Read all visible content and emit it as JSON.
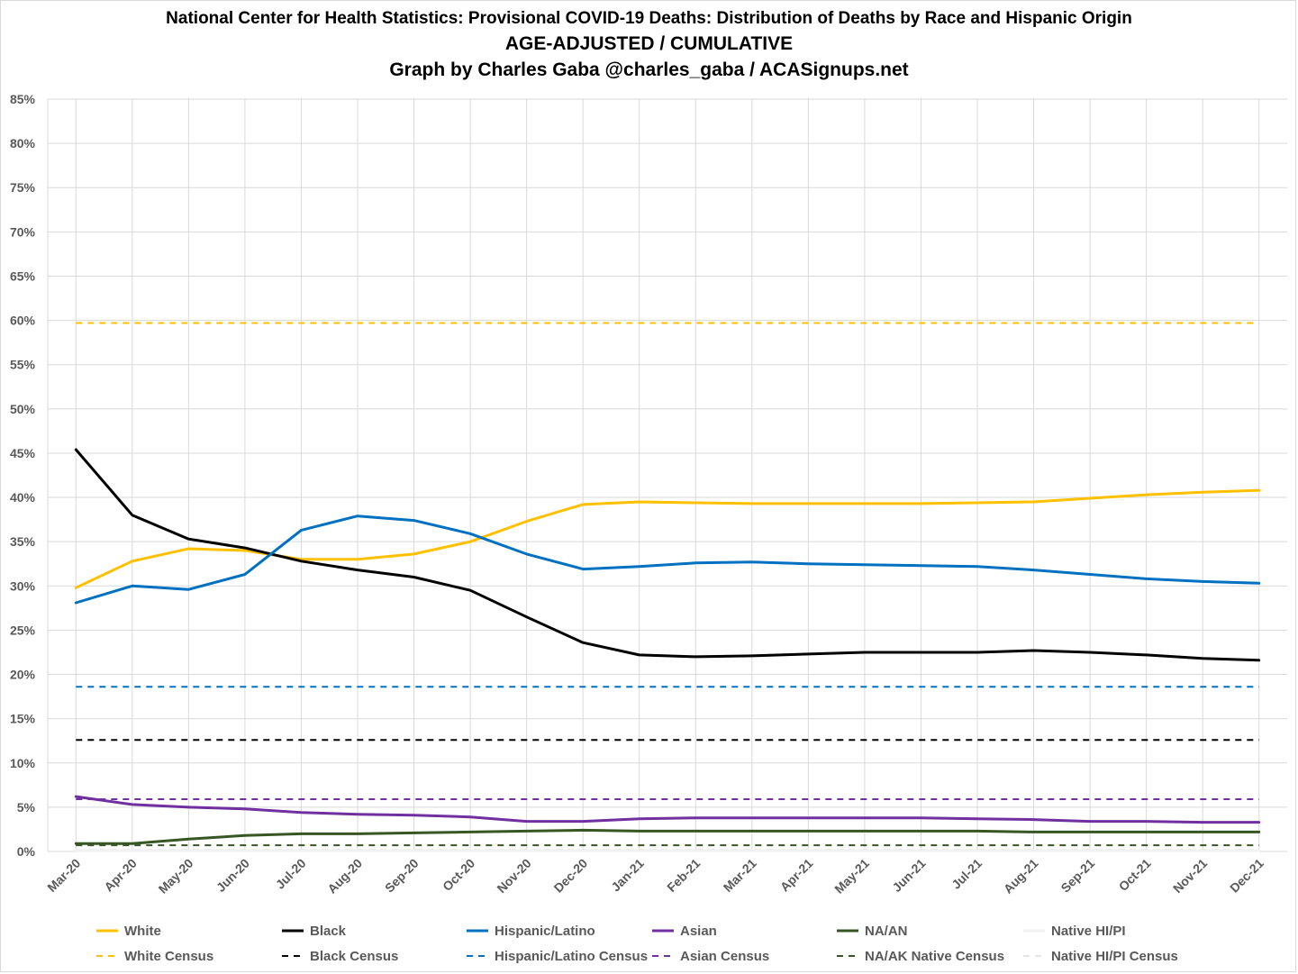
{
  "title": {
    "line1": "National Center for Health Statistics: Provisional COVID-19 Deaths: Distribution of Deaths by Race and Hispanic Origin",
    "line2": "AGE-ADJUSTED / CUMULATIVE",
    "line3": "Graph by Charles Gaba @charles_gaba / ACASignups.net"
  },
  "chart_data": {
    "type": "line",
    "title": "National Center for Health Statistics: Provisional COVID-19 Deaths: Distribution of Deaths by Race and Hispanic Origin",
    "subtitle": "AGE-ADJUSTED / CUMULATIVE",
    "xlabel": "",
    "ylabel": "",
    "ylim": [
      0,
      85
    ],
    "yticks": [
      "0%",
      "5%",
      "10%",
      "15%",
      "20%",
      "25%",
      "30%",
      "35%",
      "40%",
      "45%",
      "50%",
      "55%",
      "60%",
      "65%",
      "70%",
      "75%",
      "80%",
      "85%"
    ],
    "grid": true,
    "legend_position": "bottom",
    "categories": [
      "Mar-20",
      "Apr-20",
      "May-20",
      "Jun-20",
      "Jul-20",
      "Aug-20",
      "Sep-20",
      "Oct-20",
      "Nov-20",
      "Dec-20",
      "Jan-21",
      "Feb-21",
      "Mar-21",
      "Apr-21",
      "May-21",
      "Jun-21",
      "Jul-21",
      "Aug-21",
      "Sep-21",
      "Oct-21",
      "Nov-21",
      "Dec-21"
    ],
    "series": [
      {
        "name": "White",
        "color": "#FFC000",
        "style": "solid",
        "values": [
          29.8,
          32.8,
          34.2,
          34.0,
          33.0,
          33.0,
          33.6,
          35.0,
          37.3,
          39.2,
          39.5,
          39.4,
          39.3,
          39.3,
          39.3,
          39.3,
          39.4,
          39.5,
          39.9,
          40.3,
          40.6,
          40.8
        ]
      },
      {
        "name": "Black",
        "color": "#000000",
        "style": "solid",
        "values": [
          45.4,
          38.0,
          35.3,
          34.3,
          32.8,
          31.8,
          31.0,
          29.5,
          26.5,
          23.6,
          22.2,
          22.0,
          22.1,
          22.3,
          22.5,
          22.5,
          22.5,
          22.7,
          22.5,
          22.2,
          21.8,
          21.6
        ]
      },
      {
        "name": "Hispanic/Latino",
        "color": "#0070C0",
        "style": "solid",
        "values": [
          28.1,
          30.0,
          29.6,
          31.3,
          36.3,
          37.9,
          37.4,
          35.9,
          33.6,
          31.9,
          32.2,
          32.6,
          32.7,
          32.5,
          32.4,
          32.3,
          32.2,
          31.8,
          31.3,
          30.8,
          30.5,
          30.3
        ]
      },
      {
        "name": "Asian",
        "color": "#7030A0",
        "style": "solid",
        "values": [
          6.2,
          5.3,
          5.0,
          4.8,
          4.4,
          4.2,
          4.1,
          3.9,
          3.4,
          3.4,
          3.7,
          3.8,
          3.8,
          3.8,
          3.8,
          3.8,
          3.7,
          3.6,
          3.4,
          3.4,
          3.3,
          3.3
        ]
      },
      {
        "name": "NA/AN",
        "color": "#375623",
        "style": "solid",
        "values": [
          0.9,
          0.9,
          1.4,
          1.8,
          2.0,
          2.0,
          2.1,
          2.2,
          2.3,
          2.4,
          2.3,
          2.3,
          2.3,
          2.3,
          2.3,
          2.3,
          2.3,
          2.2,
          2.2,
          2.2,
          2.2,
          2.2
        ]
      },
      {
        "name": "Native HI/PI",
        "color": "#F2F2F2",
        "style": "solid",
        "values": [
          0.1,
          0.1,
          0.1,
          0.1,
          0.1,
          0.1,
          0.1,
          0.1,
          0.1,
          0.1,
          0.1,
          0.1,
          0.1,
          0.1,
          0.1,
          0.1,
          0.1,
          0.1,
          0.1,
          0.1,
          0.1,
          0.1
        ]
      },
      {
        "name": "White Census",
        "color": "#FFC000",
        "style": "dashed",
        "values": [
          59.7,
          59.7,
          59.7,
          59.7,
          59.7,
          59.7,
          59.7,
          59.7,
          59.7,
          59.7,
          59.7,
          59.7,
          59.7,
          59.7,
          59.7,
          59.7,
          59.7,
          59.7,
          59.7,
          59.7,
          59.7,
          59.7
        ]
      },
      {
        "name": "Black Census",
        "color": "#000000",
        "style": "dashed",
        "values": [
          12.6,
          12.6,
          12.6,
          12.6,
          12.6,
          12.6,
          12.6,
          12.6,
          12.6,
          12.6,
          12.6,
          12.6,
          12.6,
          12.6,
          12.6,
          12.6,
          12.6,
          12.6,
          12.6,
          12.6,
          12.6,
          12.6
        ]
      },
      {
        "name": "Hispanic/Latino Census",
        "color": "#0070C0",
        "style": "dashed",
        "values": [
          18.6,
          18.6,
          18.6,
          18.6,
          18.6,
          18.6,
          18.6,
          18.6,
          18.6,
          18.6,
          18.6,
          18.6,
          18.6,
          18.6,
          18.6,
          18.6,
          18.6,
          18.6,
          18.6,
          18.6,
          18.6,
          18.6
        ]
      },
      {
        "name": "Asian Census",
        "color": "#7030A0",
        "style": "dashed",
        "values": [
          5.9,
          5.9,
          5.9,
          5.9,
          5.9,
          5.9,
          5.9,
          5.9,
          5.9,
          5.9,
          5.9,
          5.9,
          5.9,
          5.9,
          5.9,
          5.9,
          5.9,
          5.9,
          5.9,
          5.9,
          5.9,
          5.9
        ]
      },
      {
        "name": "NA/AK Native Census",
        "color": "#375623",
        "style": "dashed",
        "values": [
          0.7,
          0.7,
          0.7,
          0.7,
          0.7,
          0.7,
          0.7,
          0.7,
          0.7,
          0.7,
          0.7,
          0.7,
          0.7,
          0.7,
          0.7,
          0.7,
          0.7,
          0.7,
          0.7,
          0.7,
          0.7,
          0.7
        ]
      },
      {
        "name": "Native HI/PI Census",
        "color": "#E7E6E6",
        "style": "dashed",
        "values": [
          0.2,
          0.2,
          0.2,
          0.2,
          0.2,
          0.2,
          0.2,
          0.2,
          0.2,
          0.2,
          0.2,
          0.2,
          0.2,
          0.2,
          0.2,
          0.2,
          0.2,
          0.2,
          0.2,
          0.2,
          0.2,
          0.2
        ]
      }
    ]
  }
}
